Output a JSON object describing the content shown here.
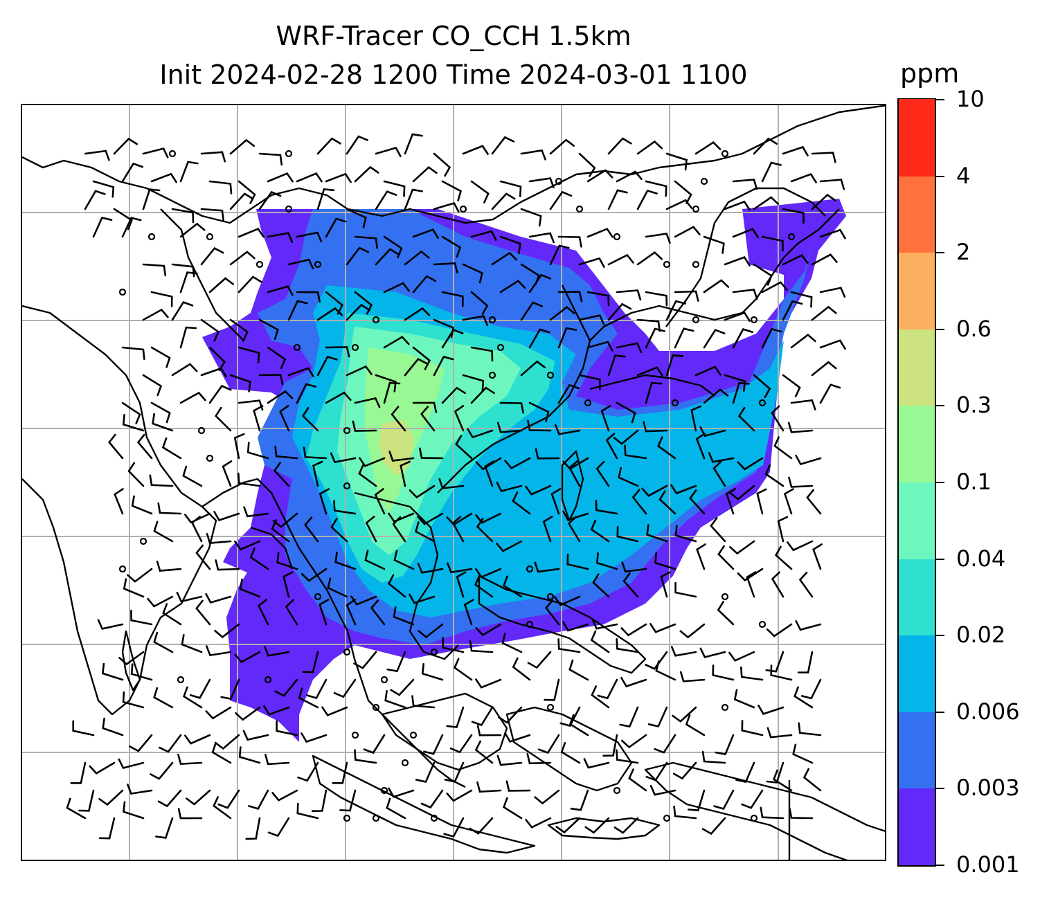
{
  "title": {
    "line1": "WRF-Tracer CO_CCH 1.5km",
    "line2": "Init 2024-02-28 1200 Time 2024-03-01 1100"
  },
  "colorbar": {
    "unit": "ppm",
    "tick_labels": [
      "0.001",
      "0.003",
      "0.006",
      "0.02",
      "0.04",
      "0.1",
      "0.3",
      "0.6",
      "2",
      "4",
      "10"
    ],
    "band_colors": [
      "#6229f8",
      "#3471f1",
      "#04b5ea",
      "#2ee0d0",
      "#6df7be",
      "#98f893",
      "#cde37f",
      "#fdaf60",
      "#ff723e",
      "#ff2a1a"
    ]
  },
  "map": {
    "plume_colors": {
      "level_0_001": "#6229f8",
      "level_0_003": "#3471f1",
      "level_0_006": "#04b5ea",
      "level_0_02": "#2ee0d0",
      "level_0_04": "#6df7be",
      "level_0_1": "#98f893",
      "level_0_3": "#cde37f"
    },
    "gridlines": "on",
    "coastline_color": "#000000",
    "wind_barbs": "on"
  }
}
